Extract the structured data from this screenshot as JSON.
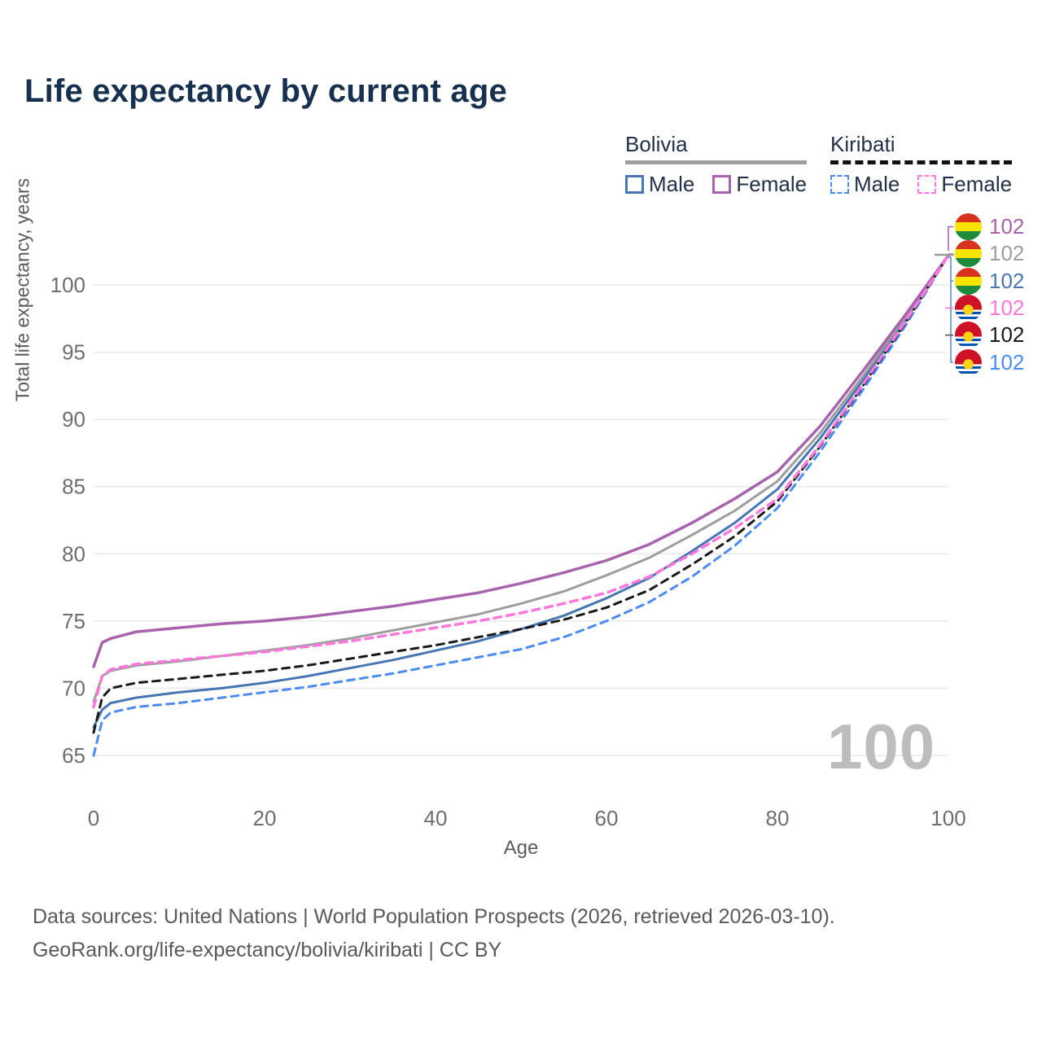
{
  "header": {
    "title": "Life expectancy by current age"
  },
  "legend": {
    "groups": [
      {
        "label": "Bolivia",
        "line_style": "solid",
        "underline_color": "#9e9e9e",
        "items": [
          {
            "label": "Male",
            "color": "#4677b4"
          },
          {
            "label": "Female",
            "color": "#a962ad"
          }
        ]
      },
      {
        "label": "Kiribati",
        "line_style": "dashed",
        "underline_color": "#111111",
        "items": [
          {
            "label": "Male",
            "color": "#4b8bf5"
          },
          {
            "label": "Female",
            "color": "#ff77dd"
          }
        ]
      }
    ]
  },
  "watermark": "100",
  "chart_data": {
    "type": "line",
    "title": "Life expectancy by current age",
    "xlabel": "Age",
    "ylabel": "Total life expectancy, years",
    "xlim": [
      0,
      100
    ],
    "ylim": [
      63,
      103
    ],
    "xticks": [
      0,
      20,
      40,
      60,
      80,
      100
    ],
    "yticks": [
      65,
      70,
      75,
      80,
      85,
      90,
      95,
      100
    ],
    "grid": "horizontal-only",
    "legend_position": "top-right",
    "x": [
      0,
      1,
      2,
      5,
      10,
      15,
      20,
      25,
      30,
      35,
      40,
      45,
      50,
      55,
      60,
      65,
      70,
      75,
      80,
      85,
      90,
      95,
      100
    ],
    "series": [
      {
        "name": "Bolivia Female",
        "color": "#a962ad",
        "dashed": false,
        "width": 3.5,
        "flag": "bolivia",
        "end_label": "102",
        "values": [
          71.6,
          73.4,
          73.7,
          74.2,
          74.5,
          74.8,
          75.0,
          75.3,
          75.7,
          76.1,
          76.6,
          77.1,
          77.8,
          78.6,
          79.5,
          80.7,
          82.3,
          84.1,
          86.1,
          89.5,
          93.6,
          97.8,
          102.2
        ]
      },
      {
        "name": "Bolivia Both sexes",
        "color": "#9e9e9e",
        "dashed": false,
        "width": 3,
        "flag": "bolivia",
        "end_label": "102",
        "values": [
          69.0,
          70.9,
          71.3,
          71.7,
          72.0,
          72.4,
          72.8,
          73.2,
          73.7,
          74.3,
          74.9,
          75.5,
          76.3,
          77.2,
          78.4,
          79.7,
          81.4,
          83.2,
          85.4,
          89.0,
          93.2,
          97.6,
          102.2
        ]
      },
      {
        "name": "Bolivia Male",
        "color": "#4677b4",
        "dashed": false,
        "width": 3,
        "flag": "bolivia",
        "end_label": "102",
        "values": [
          67.1,
          68.4,
          68.9,
          69.3,
          69.7,
          70.0,
          70.4,
          70.9,
          71.5,
          72.1,
          72.8,
          73.5,
          74.4,
          75.4,
          76.7,
          78.2,
          80.2,
          82.3,
          84.8,
          88.6,
          92.9,
          97.4,
          102.2
        ]
      },
      {
        "name": "Kiribati Female",
        "color": "#ff77dd",
        "dashed": true,
        "width": 3.5,
        "flag": "kiribati",
        "end_label": "102",
        "values": [
          68.6,
          70.9,
          71.4,
          71.8,
          72.1,
          72.4,
          72.7,
          73.1,
          73.5,
          74.0,
          74.5,
          75.0,
          75.6,
          76.3,
          77.1,
          78.3,
          80.0,
          81.9,
          84.1,
          88.1,
          92.6,
          97.3,
          102.2
        ]
      },
      {
        "name": "Kiribati Both sexes",
        "color": "#1a1a1a",
        "dashed": true,
        "width": 3,
        "flag": "kiribati",
        "end_label": "102",
        "values": [
          66.7,
          69.3,
          70.0,
          70.4,
          70.7,
          71.0,
          71.3,
          71.7,
          72.2,
          72.7,
          73.2,
          73.8,
          74.4,
          75.1,
          76.0,
          77.3,
          79.2,
          81.3,
          83.9,
          88.0,
          92.5,
          97.2,
          102.2
        ]
      },
      {
        "name": "Kiribati Male",
        "color": "#4b8bf5",
        "dashed": true,
        "width": 3,
        "flag": "kiribati",
        "end_label": "102",
        "values": [
          65.0,
          67.6,
          68.2,
          68.6,
          68.9,
          69.3,
          69.7,
          70.1,
          70.6,
          71.1,
          71.7,
          72.3,
          72.9,
          73.8,
          75.0,
          76.4,
          78.3,
          80.6,
          83.4,
          87.6,
          92.2,
          97.0,
          102.2
        ]
      }
    ]
  },
  "footer": {
    "line1": "Data sources: United Nations | World Population Prospects (2026, retrieved 2026-03-10).",
    "line2": "GeoRank.org/life-expectancy/bolivia/kiribati | CC BY"
  }
}
